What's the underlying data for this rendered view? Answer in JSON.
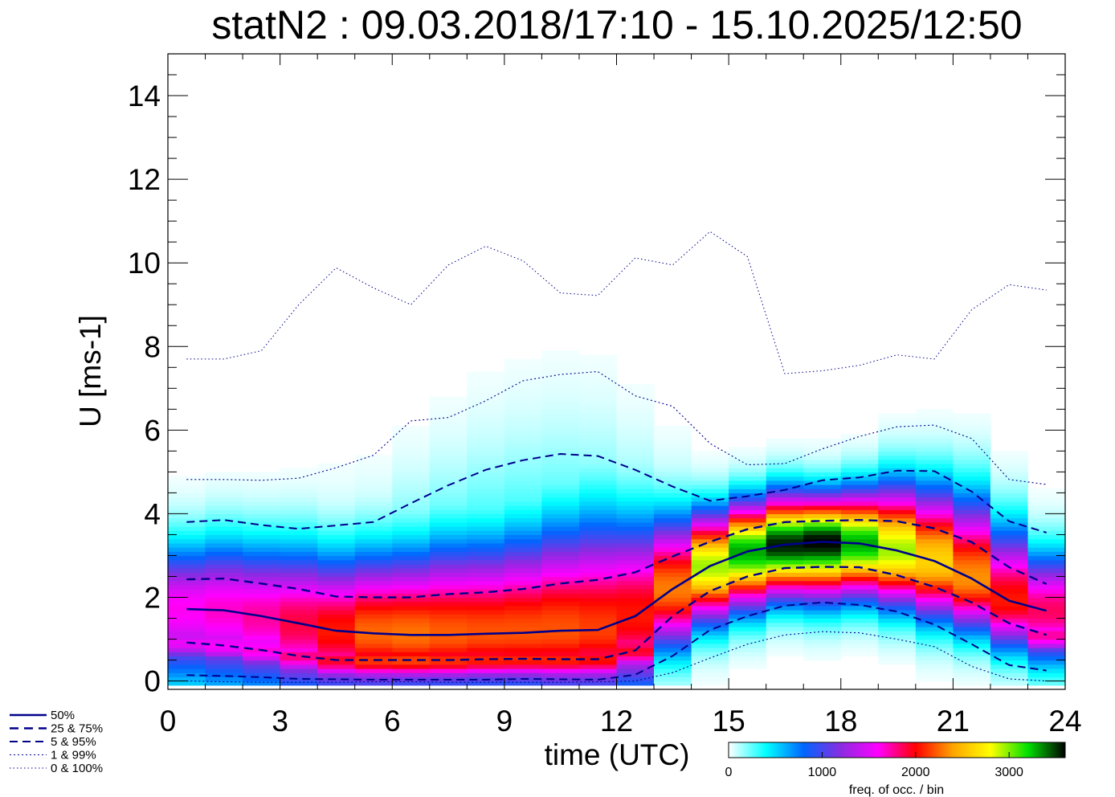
{
  "chart_data": {
    "type": "heatmap",
    "title": "statN2 : 09.03.2018/17:10 - 15.10.2025/12:50",
    "xlabel": "time (UTC)",
    "ylabel": "U [ms-1]",
    "xlim": [
      0,
      24
    ],
    "ylim": [
      -0.2,
      15
    ],
    "x_ticks": [
      "0",
      "3",
      "6",
      "9",
      "12",
      "15",
      "18",
      "21",
      "24"
    ],
    "y_ticks": [
      "0",
      "2",
      "4",
      "6",
      "8",
      "10",
      "12",
      "14"
    ],
    "x": [
      0.5,
      1.5,
      2.5,
      3.5,
      4.5,
      5.5,
      6.5,
      7.5,
      8.5,
      9.5,
      10.5,
      11.5,
      12.5,
      13.5,
      14.5,
      15.5,
      16.5,
      17.5,
      18.5,
      19.5,
      20.5,
      21.5,
      22.5,
      23.5
    ],
    "series": [
      {
        "name": "50%",
        "style": "solid",
        "values": [
          1.72,
          1.69,
          1.55,
          1.38,
          1.2,
          1.14,
          1.1,
          1.1,
          1.13,
          1.15,
          1.2,
          1.22,
          1.55,
          2.2,
          2.75,
          3.1,
          3.26,
          3.33,
          3.29,
          3.12,
          2.87,
          2.45,
          1.92,
          1.68
        ]
      },
      {
        "name": "25 &  75%",
        "style": "dashed",
        "values": {
          "upper": [
            2.43,
            2.45,
            2.33,
            2.2,
            2.02,
            2.0,
            2.0,
            2.08,
            2.12,
            2.2,
            2.33,
            2.42,
            2.6,
            2.98,
            3.33,
            3.63,
            3.8,
            3.83,
            3.85,
            3.82,
            3.65,
            3.32,
            2.72,
            2.32
          ],
          "lower": [
            0.92,
            0.85,
            0.74,
            0.6,
            0.5,
            0.5,
            0.5,
            0.5,
            0.52,
            0.53,
            0.52,
            0.52,
            0.73,
            1.55,
            2.15,
            2.5,
            2.7,
            2.73,
            2.72,
            2.53,
            2.25,
            1.88,
            1.38,
            1.1
          ]
        }
      },
      {
        "name": "5 &  95%",
        "style": "dashed-fine",
        "values": {
          "upper": [
            3.8,
            3.85,
            3.73,
            3.64,
            3.72,
            3.8,
            4.25,
            4.68,
            5.05,
            5.28,
            5.43,
            5.38,
            5.05,
            4.65,
            4.31,
            4.42,
            4.57,
            4.8,
            4.87,
            5.03,
            5.02,
            4.53,
            3.82,
            3.55
          ],
          "lower": [
            0.14,
            0.12,
            0.09,
            0.05,
            0.04,
            0.03,
            0.03,
            0.03,
            0.03,
            0.05,
            0.04,
            0.03,
            0.15,
            0.6,
            1.22,
            1.55,
            1.8,
            1.88,
            1.82,
            1.66,
            1.35,
            0.88,
            0.38,
            0.25
          ]
        }
      },
      {
        "name": "1 &  99%",
        "style": "dotted",
        "values": {
          "upper": [
            4.82,
            4.82,
            4.8,
            4.85,
            5.1,
            5.4,
            6.22,
            6.3,
            6.7,
            7.18,
            7.33,
            7.4,
            6.82,
            6.57,
            5.68,
            5.17,
            5.2,
            5.55,
            5.85,
            6.08,
            6.12,
            5.8,
            4.82,
            4.7
          ],
          "lower": [
            0.0,
            -0.02,
            -0.03,
            -0.03,
            -0.03,
            -0.02,
            -0.02,
            -0.03,
            -0.03,
            -0.03,
            -0.03,
            -0.02,
            0.0,
            0.2,
            0.55,
            0.88,
            1.1,
            1.18,
            1.15,
            1.0,
            0.82,
            0.35,
            0.05,
            0.0
          ]
        }
      },
      {
        "name": "0 & 100%",
        "style": "dotted-fine",
        "values": {
          "upper": [
            7.7,
            7.7,
            7.9,
            9.0,
            9.88,
            9.4,
            9.0,
            9.95,
            10.4,
            10.05,
            9.28,
            9.22,
            10.12,
            9.95,
            10.75,
            10.15,
            7.35,
            7.42,
            7.55,
            7.8,
            7.7,
            8.88,
            9.48,
            9.35
          ]
        }
      }
    ],
    "density_peaks": [
      {
        "x": 17,
        "y": 3.2,
        "value": 3600
      },
      {
        "x": 5.5,
        "y": 0.6,
        "value": 2300
      },
      {
        "x": 17,
        "y": 2.4,
        "value": 2400
      }
    ],
    "colorbar": {
      "label": "freq. of occ. / bin",
      "range": [
        0,
        3600
      ],
      "ticks": [
        "0",
        "1000",
        "2000",
        "3000"
      ],
      "tick_values": [
        0,
        1000,
        2000,
        3000
      ],
      "stops": [
        "#ffffff",
        "#00ffff",
        "#0066ff",
        "#8a2be2",
        "#ff00ff",
        "#ff0000",
        "#ffa500",
        "#ffff00",
        "#00e000",
        "#000000"
      ]
    },
    "legend_position": "bottom-left",
    "legend": [
      "50%",
      "25 &  75%",
      "5 &  95%",
      "1 &  99%",
      "0 & 100%"
    ],
    "line_color": "#00008b"
  }
}
